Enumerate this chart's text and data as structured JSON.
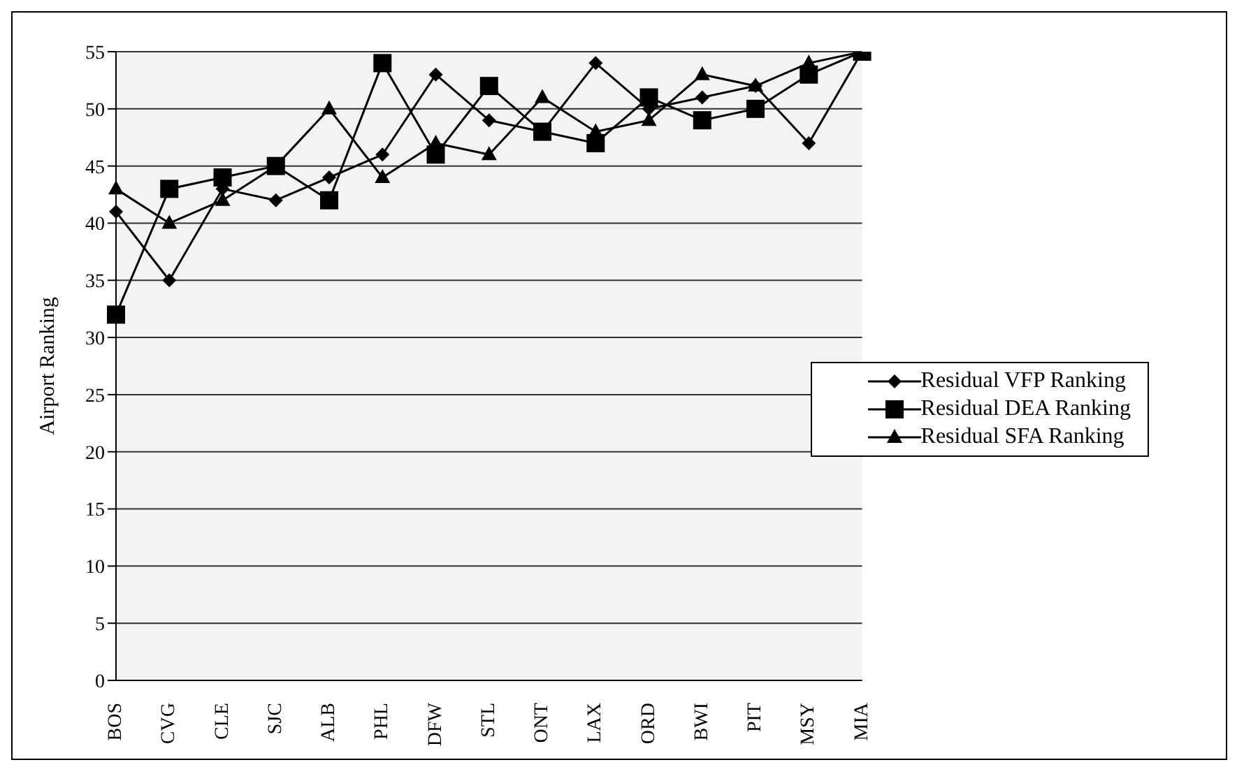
{
  "chart_data": {
    "type": "line",
    "ylabel": "Airport Ranking",
    "categories": [
      "BOS",
      "CVG",
      "CLE",
      "SJC",
      "ALB",
      "PHL",
      "DFW",
      "STL",
      "ONT",
      "LAX",
      "ORD",
      "BWI",
      "PIT",
      "MSY",
      "MIA"
    ],
    "series": [
      {
        "name": "Residual VFP Ranking",
        "color": "#000000",
        "marker": "diamond",
        "values": [
          41,
          35,
          43,
          42,
          44,
          46,
          53,
          49,
          48,
          54,
          50,
          51,
          52,
          47,
          55
        ]
      },
      {
        "name": "Residual DEA Ranking",
        "color": "#000000",
        "marker": "square",
        "values": [
          32,
          43,
          44,
          45,
          42,
          54,
          46,
          52,
          48,
          47,
          51,
          49,
          50,
          53,
          55
        ]
      },
      {
        "name": "Residual SFA Ranking",
        "color": "#000000",
        "marker": "triangle",
        "values": [
          43,
          40,
          42,
          45,
          50,
          44,
          47,
          46,
          51,
          48,
          49,
          53,
          52,
          54,
          55
        ]
      }
    ],
    "ylim": [
      0,
      55
    ],
    "yticks": [
      0,
      5,
      10,
      15,
      20,
      25,
      30,
      35,
      40,
      45,
      50,
      55
    ],
    "grid": "y",
    "legend": "right",
    "line_style": "solid"
  }
}
